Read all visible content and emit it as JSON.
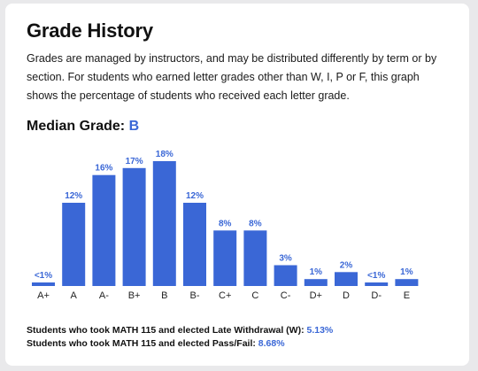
{
  "title": "Grade History",
  "description": "Grades are managed by instructors, and may be distributed differently by term or by section. For students who earned letter grades other than W, I, P or F, this graph shows the percentage of students who received each letter grade.",
  "median": {
    "label": "Median Grade:",
    "value": "B"
  },
  "footer": {
    "withdrawal_label": "Students who took MATH 115 and elected Late Withdrawal (W):",
    "withdrawal_value": "5.13%",
    "passfail_label": "Students who took MATH 115 and elected Pass/Fail:",
    "passfail_value": "8.68%"
  },
  "colors": {
    "bar": "#3a67d6",
    "accent": "#3a67d6"
  },
  "chart_data": {
    "type": "bar",
    "categories": [
      "A+",
      "A",
      "A-",
      "B+",
      "B",
      "B-",
      "C+",
      "C",
      "C-",
      "D+",
      "D",
      "D-",
      "E"
    ],
    "values": [
      0.5,
      12,
      16,
      17,
      18,
      12,
      8,
      8,
      3,
      1,
      2,
      0.5,
      1
    ],
    "data_labels": [
      "<1%",
      "12%",
      "16%",
      "17%",
      "18%",
      "12%",
      "8%",
      "8%",
      "3%",
      "1%",
      "2%",
      "<1%",
      "1%"
    ],
    "ylim": [
      0,
      18
    ],
    "grid": false
  }
}
